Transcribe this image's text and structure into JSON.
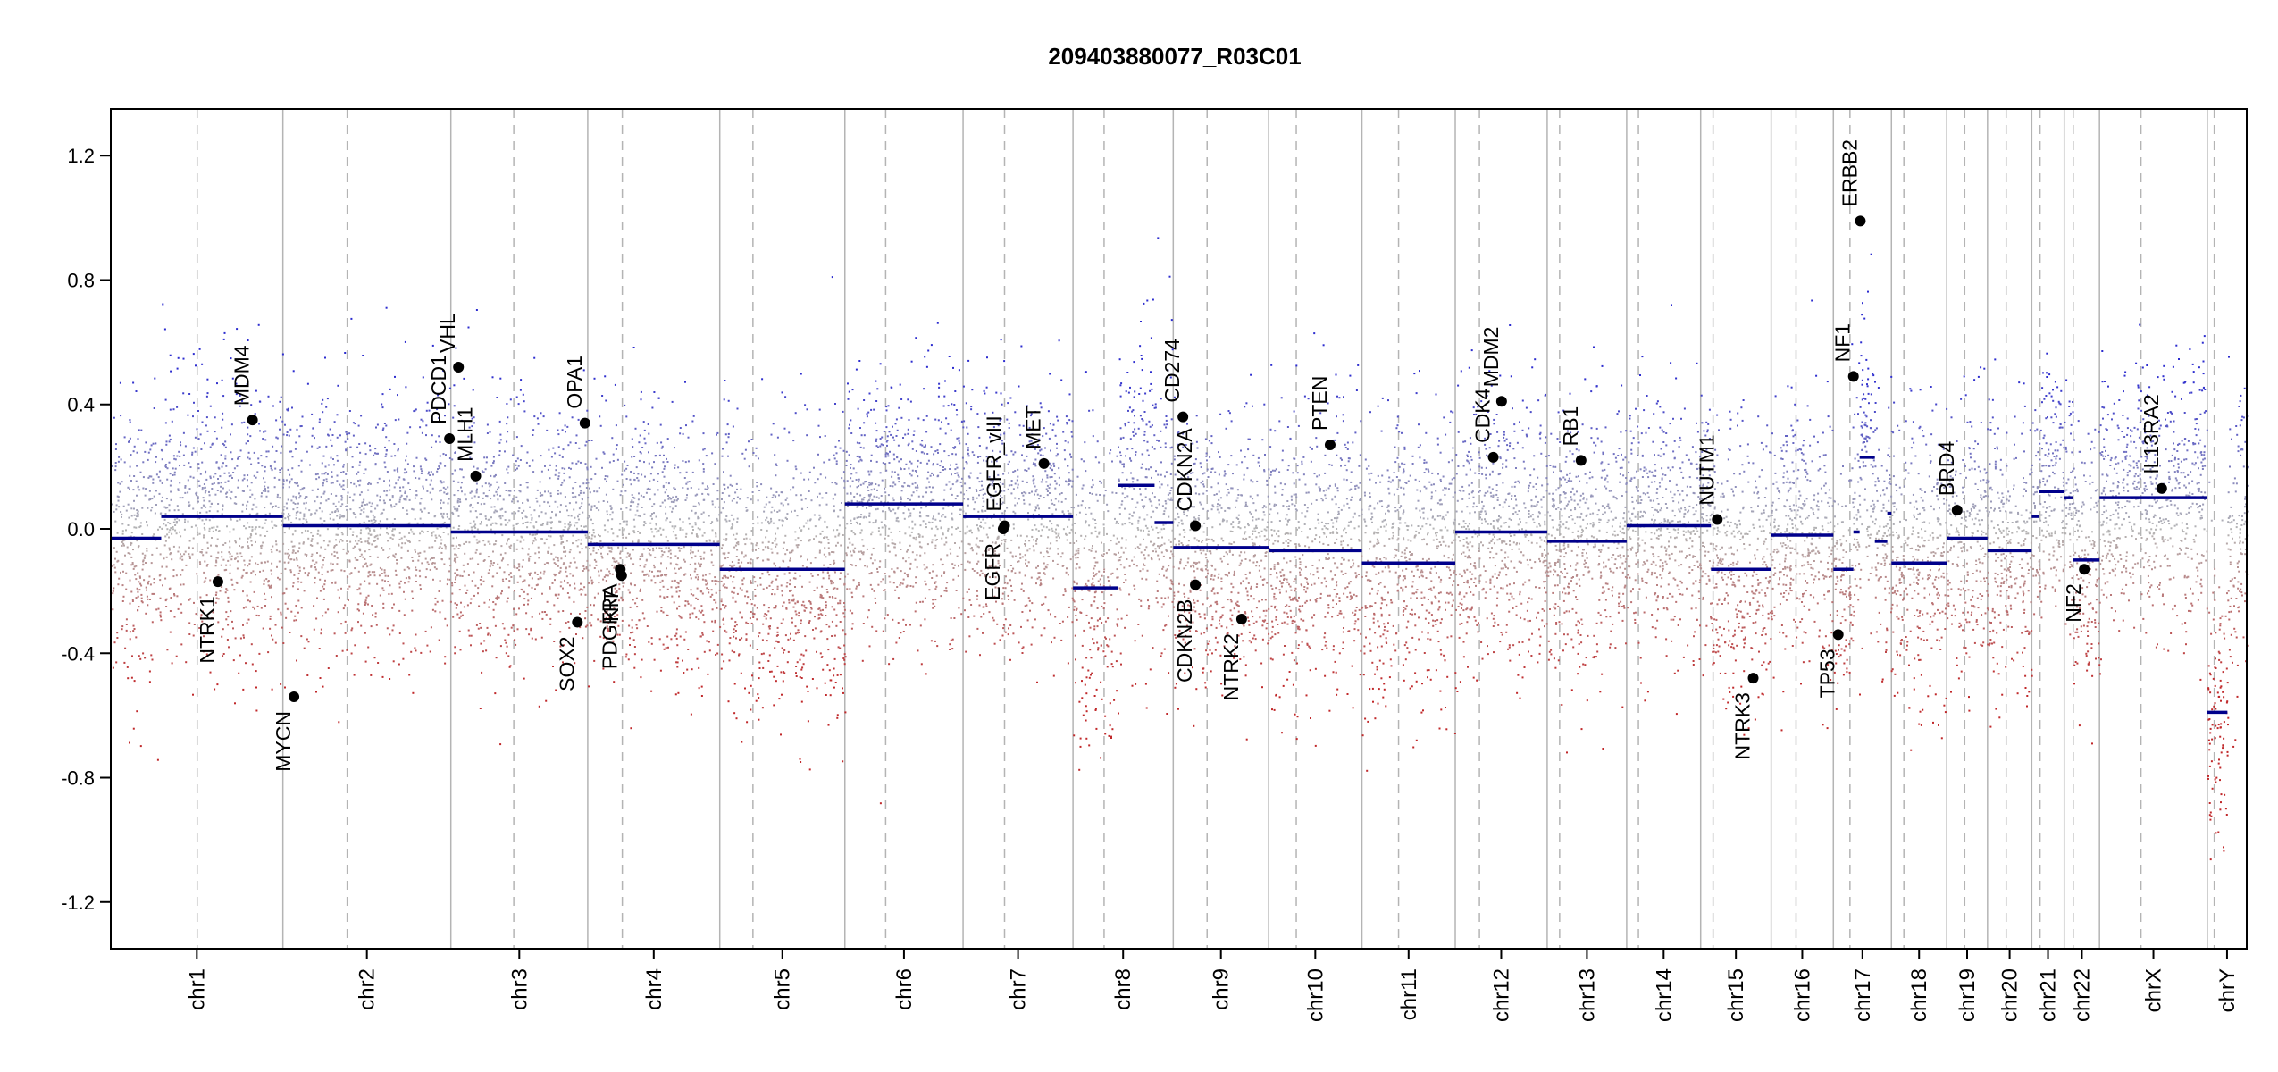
{
  "chart_data": {
    "type": "scatter",
    "title": "209403880077_R03C01",
    "xlabel": "",
    "ylabel": "",
    "ylim": [
      -1.35,
      1.35
    ],
    "grid": false,
    "colors": {
      "gain": "#2c2ccf",
      "loss": "#c0282a",
      "neutral": "#b4b4b4",
      "segment": "#00008b",
      "boundary": "#b4b4b4",
      "gene_point": "#000000"
    },
    "y_ticks": [
      {
        "value": 1.2,
        "label": "1.2"
      },
      {
        "value": 0.8,
        "label": "0.8"
      },
      {
        "value": 0.4,
        "label": "0.4"
      },
      {
        "value": 0.0,
        "label": "0.0"
      },
      {
        "value": -0.4,
        "label": "-0.4"
      },
      {
        "value": -0.8,
        "label": "-0.8"
      },
      {
        "value": -1.2,
        "label": "-1.2"
      }
    ],
    "chromosomes": [
      {
        "name": "chr1",
        "label": "chr1",
        "start": 0,
        "end": 249,
        "centromere": 125,
        "noise": 0.22,
        "segments": [
          {
            "start": 0,
            "end": 73,
            "value": -0.03
          },
          {
            "start": 73,
            "end": 249,
            "value": 0.04
          }
        ]
      },
      {
        "name": "chr2",
        "label": "chr2",
        "start": 249,
        "end": 492,
        "centromere": 342,
        "noise": 0.2,
        "segments": [
          {
            "start": 249,
            "end": 492,
            "value": 0.01
          }
        ]
      },
      {
        "name": "chr3",
        "label": "chr3",
        "start": 492,
        "end": 690,
        "centromere": 583,
        "noise": 0.2,
        "segments": [
          {
            "start": 492,
            "end": 690,
            "value": -0.01
          }
        ]
      },
      {
        "name": "chr4",
        "label": "chr4",
        "start": 690,
        "end": 881,
        "centromere": 740,
        "noise": 0.2,
        "segments": [
          {
            "start": 690,
            "end": 881,
            "value": -0.05
          }
        ]
      },
      {
        "name": "chr5",
        "label": "chr5",
        "start": 881,
        "end": 1062,
        "centromere": 929,
        "noise": 0.22,
        "segments": [
          {
            "start": 881,
            "end": 1062,
            "value": -0.13
          }
        ]
      },
      {
        "name": "chr6",
        "label": "chr6",
        "start": 1062,
        "end": 1233,
        "centromere": 1121,
        "noise": 0.2,
        "segments": [
          {
            "start": 1062,
            "end": 1233,
            "value": 0.08
          }
        ]
      },
      {
        "name": "chr7",
        "label": "chr7",
        "start": 1233,
        "end": 1392,
        "centromere": 1293,
        "noise": 0.2,
        "segments": [
          {
            "start": 1233,
            "end": 1392,
            "value": 0.04
          }
        ]
      },
      {
        "name": "chr8",
        "label": "chr8",
        "start": 1392,
        "end": 1537,
        "centromere": 1437,
        "noise": 0.24,
        "segments": [
          {
            "start": 1392,
            "end": 1457,
            "value": -0.19
          },
          {
            "start": 1457,
            "end": 1510,
            "value": 0.14
          },
          {
            "start": 1510,
            "end": 1537,
            "value": 0.02
          }
        ]
      },
      {
        "name": "chr9",
        "label": "chr9",
        "start": 1537,
        "end": 1675,
        "centromere": 1586,
        "noise": 0.2,
        "segments": [
          {
            "start": 1537,
            "end": 1562,
            "value": -0.06
          },
          {
            "start": 1562,
            "end": 1675,
            "value": -0.06
          }
        ]
      },
      {
        "name": "chr10",
        "label": "chr10",
        "start": 1675,
        "end": 1810,
        "centromere": 1715,
        "noise": 0.22,
        "segments": [
          {
            "start": 1675,
            "end": 1810,
            "value": -0.07
          }
        ]
      },
      {
        "name": "chr11",
        "label": "chr11",
        "start": 1810,
        "end": 1945,
        "centromere": 1863,
        "noise": 0.22,
        "segments": [
          {
            "start": 1810,
            "end": 1945,
            "value": -0.11
          }
        ]
      },
      {
        "name": "chr12",
        "label": "chr12",
        "start": 1945,
        "end": 2078,
        "centromere": 1980,
        "noise": 0.22,
        "segments": [
          {
            "start": 1945,
            "end": 2078,
            "value": -0.01
          }
        ]
      },
      {
        "name": "chr13",
        "label": "chr13",
        "start": 2078,
        "end": 2193,
        "centromere": 2096,
        "noise": 0.2,
        "segments": [
          {
            "start": 2078,
            "end": 2193,
            "value": -0.04
          }
        ]
      },
      {
        "name": "chr14",
        "label": "chr14",
        "start": 2193,
        "end": 2300,
        "centromere": 2210,
        "noise": 0.2,
        "segments": [
          {
            "start": 2193,
            "end": 2300,
            "value": 0.01
          }
        ]
      },
      {
        "name": "chr15",
        "label": "chr15",
        "start": 2300,
        "end": 2402,
        "centromere": 2318,
        "noise": 0.22,
        "segments": [
          {
            "start": 2300,
            "end": 2315,
            "value": 0.01
          },
          {
            "start": 2315,
            "end": 2402,
            "value": -0.13
          }
        ]
      },
      {
        "name": "chr16",
        "label": "chr16",
        "start": 2402,
        "end": 2492,
        "centromere": 2438,
        "noise": 0.2,
        "segments": [
          {
            "start": 2402,
            "end": 2492,
            "value": -0.02
          }
        ]
      },
      {
        "name": "chr17",
        "label": "chr17",
        "start": 2492,
        "end": 2576,
        "centromere": 2516,
        "noise": 0.22,
        "segments": [
          {
            "start": 2492,
            "end": 2521,
            "value": -0.13
          },
          {
            "start": 2521,
            "end": 2530,
            "value": -0.01
          },
          {
            "start": 2530,
            "end": 2552,
            "value": 0.23
          },
          {
            "start": 2552,
            "end": 2570,
            "value": -0.04
          },
          {
            "start": 2570,
            "end": 2576,
            "value": 0.05
          }
        ]
      },
      {
        "name": "chr18",
        "label": "chr18",
        "start": 2576,
        "end": 2656,
        "centromere": 2594,
        "noise": 0.22,
        "segments": [
          {
            "start": 2576,
            "end": 2656,
            "value": -0.11
          }
        ]
      },
      {
        "name": "chr19",
        "label": "chr19",
        "start": 2656,
        "end": 2715,
        "centromere": 2682,
        "noise": 0.2,
        "segments": [
          {
            "start": 2656,
            "end": 2715,
            "value": -0.03
          }
        ]
      },
      {
        "name": "chr20",
        "label": "chr20",
        "start": 2715,
        "end": 2779,
        "centromere": 2742,
        "noise": 0.22,
        "segments": [
          {
            "start": 2715,
            "end": 2779,
            "value": -0.07
          }
        ]
      },
      {
        "name": "chr21",
        "label": "chr21",
        "start": 2779,
        "end": 2826,
        "centromere": 2791,
        "noise": 0.2,
        "segments": [
          {
            "start": 2779,
            "end": 2790,
            "value": 0.04
          },
          {
            "start": 2790,
            "end": 2826,
            "value": 0.12
          }
        ]
      },
      {
        "name": "chr22",
        "label": "chr22",
        "start": 2826,
        "end": 2877,
        "centromere": 2839,
        "noise": 0.2,
        "segments": [
          {
            "start": 2826,
            "end": 2839,
            "value": 0.1
          },
          {
            "start": 2839,
            "end": 2877,
            "value": -0.1
          }
        ]
      },
      {
        "name": "chrX",
        "label": "chrX",
        "start": 2877,
        "end": 3033,
        "centromere": 2937,
        "noise": 0.2,
        "segments": [
          {
            "start": 2877,
            "end": 3033,
            "value": 0.1
          }
        ]
      },
      {
        "name": "chrY",
        "label": "chrY",
        "start": 3033,
        "end": 3090,
        "centromere": 3043,
        "noise": 0.25,
        "segments": [
          {
            "start": 3033,
            "end": 3062,
            "value": -0.59
          }
        ]
      }
    ],
    "genes": [
      {
        "name": "NTRK1",
        "x": 155,
        "y": -0.17,
        "label_side": "below"
      },
      {
        "name": "MDM4",
        "x": 205,
        "y": 0.35,
        "label_side": "above"
      },
      {
        "name": "MYCN",
        "x": 265,
        "y": -0.54,
        "label_side": "below"
      },
      {
        "name": "PDCD1",
        "x": 490,
        "y": 0.29,
        "label_side": "above"
      },
      {
        "name": "VHL",
        "x": 503,
        "y": 0.52,
        "label_side": "above"
      },
      {
        "name": "MLH1",
        "x": 528,
        "y": 0.17,
        "label_side": "above"
      },
      {
        "name": "SOX2",
        "x": 675,
        "y": -0.3,
        "label_side": "below"
      },
      {
        "name": "OPA1",
        "x": 686,
        "y": 0.34,
        "label_side": "above"
      },
      {
        "name": "KIT",
        "x": 739,
        "y": -0.15,
        "label_side": "below"
      },
      {
        "name": "PDGFRA",
        "x": 737,
        "y": -0.13,
        "label_side": "below"
      },
      {
        "name": "EGFR",
        "x": 1291,
        "y": 0.0,
        "label_side": "below"
      },
      {
        "name": "EGFR_vIII",
        "x": 1293,
        "y": 0.01,
        "label_side": "above"
      },
      {
        "name": "MET",
        "x": 1350,
        "y": 0.21,
        "label_side": "above"
      },
      {
        "name": "CD274",
        "x": 1551,
        "y": 0.36,
        "label_side": "above"
      },
      {
        "name": "CDKN2A",
        "x": 1569,
        "y": 0.01,
        "label_side": "above"
      },
      {
        "name": "CDKN2B",
        "x": 1569,
        "y": -0.18,
        "label_side": "below"
      },
      {
        "name": "NTRK2",
        "x": 1636,
        "y": -0.29,
        "label_side": "below"
      },
      {
        "name": "PTEN",
        "x": 1764,
        "y": 0.27,
        "label_side": "above"
      },
      {
        "name": "CDK4",
        "x": 2000,
        "y": 0.23,
        "label_side": "above"
      },
      {
        "name": "MDM2",
        "x": 2012,
        "y": 0.41,
        "label_side": "above"
      },
      {
        "name": "RB1",
        "x": 2127,
        "y": 0.22,
        "label_side": "above"
      },
      {
        "name": "NUTM1",
        "x": 2324,
        "y": 0.03,
        "label_side": "above"
      },
      {
        "name": "NTRK3",
        "x": 2376,
        "y": -0.48,
        "label_side": "below"
      },
      {
        "name": "TP53",
        "x": 2499,
        "y": -0.34,
        "label_side": "below"
      },
      {
        "name": "NF1",
        "x": 2521,
        "y": 0.49,
        "label_side": "above"
      },
      {
        "name": "ERBB2",
        "x": 2531,
        "y": 0.99,
        "label_side": "above"
      },
      {
        "name": "BRD4",
        "x": 2671,
        "y": 0.06,
        "label_side": "above"
      },
      {
        "name": "NF2",
        "x": 2855,
        "y": -0.13,
        "label_side": "below"
      },
      {
        "name": "IL13RA2",
        "x": 2967,
        "y": 0.13,
        "label_side": "above"
      }
    ]
  }
}
